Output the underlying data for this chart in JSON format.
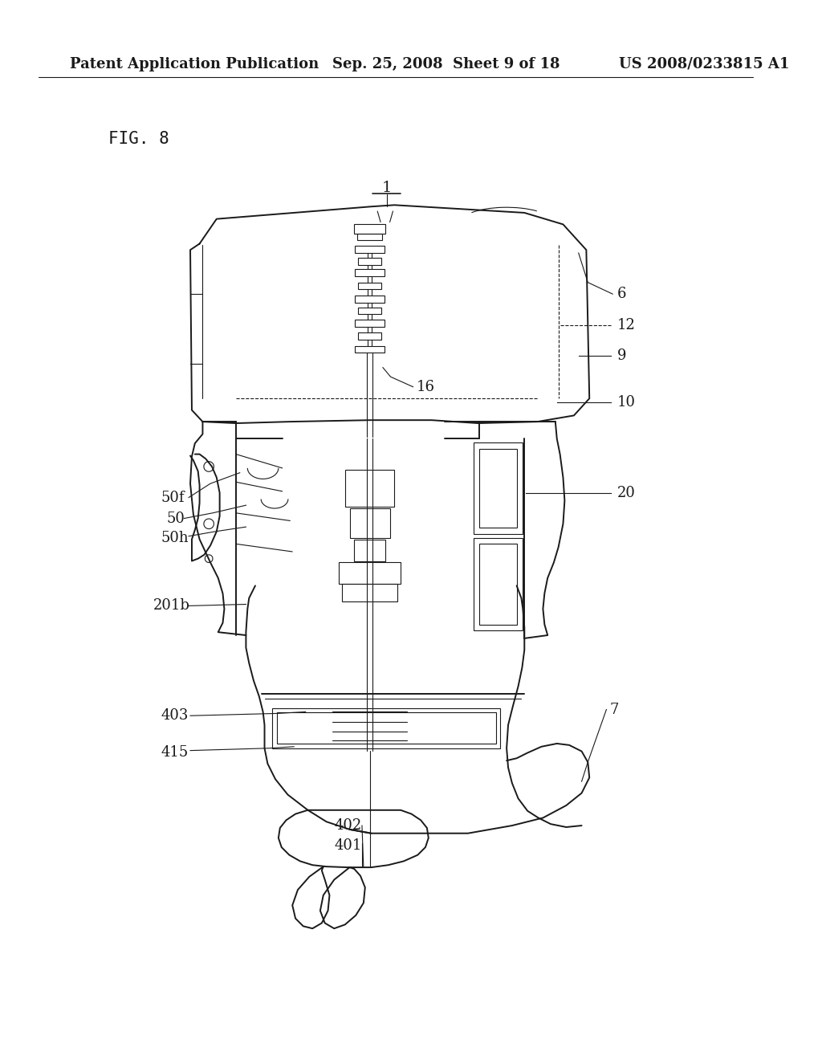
{
  "bg_color": "#ffffff",
  "header_left": "Patent Application Publication",
  "header_mid": "Sep. 25, 2008  Sheet 9 of 18",
  "header_right": "US 2008/0233815 A1",
  "fig_label": "FIG. 8",
  "title_label": "1",
  "line_color": "#1a1a1a",
  "text_color": "#1a1a1a",
  "header_fontsize": 13,
  "fig_fontsize": 15,
  "label_fontsize": 13,
  "title_fontsize": 14
}
